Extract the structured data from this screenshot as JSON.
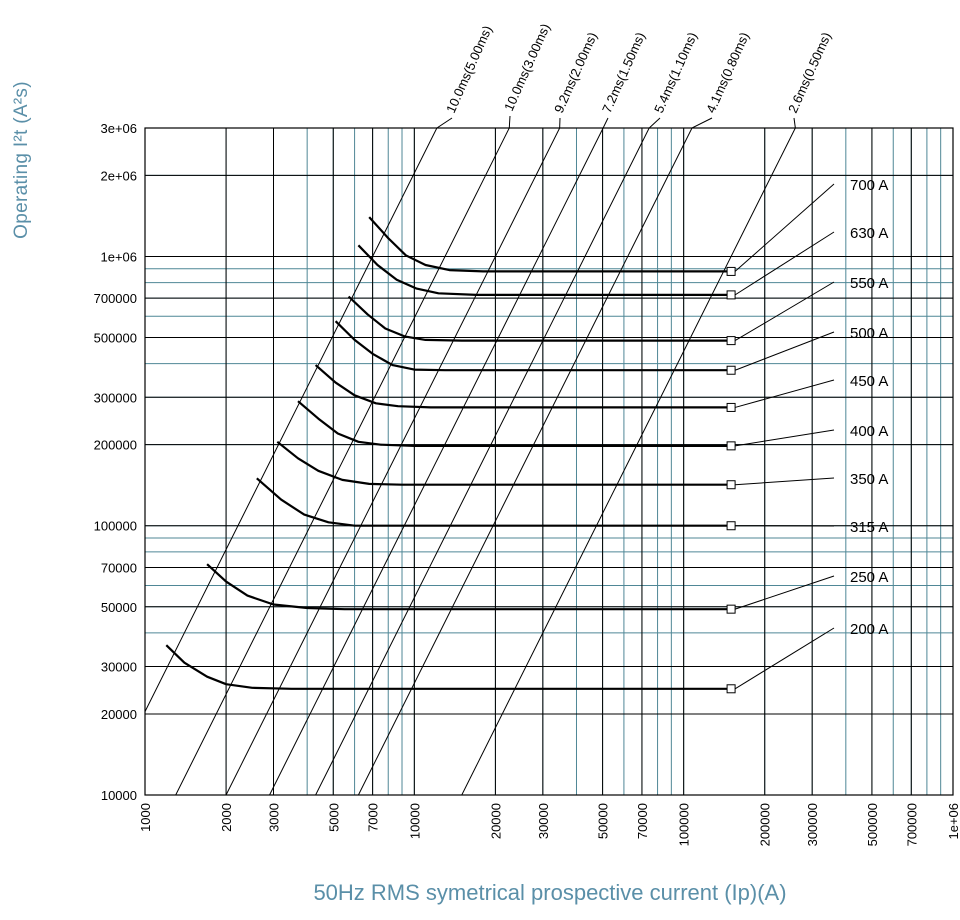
{
  "chart_data": {
    "type": "line",
    "xlabel": "50Hz RMS symetrical prospective current (Ip)(A)",
    "ylabel": "Operating I²t (A²s)",
    "x_scale": "log",
    "y_scale": "log",
    "xlim": [
      1000,
      1000000
    ],
    "ylim": [
      10000,
      3000000
    ],
    "grid": true,
    "x_ticks": [
      "1000",
      "2000",
      "3000",
      "5000",
      "7000",
      "10000",
      "20000",
      "30000",
      "50000",
      "70000",
      "100000",
      "200000",
      "300000",
      "500000",
      "700000",
      "1e+06"
    ],
    "y_ticks": [
      "3e+06",
      "2e+06",
      "1e+06",
      "700000",
      "500000",
      "300000",
      "200000",
      "100000",
      "70000",
      "50000",
      "30000",
      "20000",
      "10000"
    ],
    "diagonal_labels": [
      "10.0ms(5.00ms)",
      "10.0ms(3.00ms)",
      "9.2ms(2.00ms)",
      "7.2ms(1.50ms)",
      "5.4ms(1.10ms)",
      "4.1ms(0.80ms)",
      "2.6ms(0.50ms)"
    ],
    "series": [
      {
        "name": "200 A",
        "x": [
          1200,
          1400,
          1700,
          2000,
          2500,
          3500,
          150000
        ],
        "y": [
          36000,
          31000,
          27500,
          25800,
          25000,
          24800,
          24800
        ]
      },
      {
        "name": "250 A",
        "x": [
          1700,
          2000,
          2400,
          3000,
          4000,
          5500,
          150000
        ],
        "y": [
          72000,
          62000,
          55000,
          51000,
          49500,
          49000,
          49000
        ]
      },
      {
        "name": "315 A",
        "x": [
          2600,
          3200,
          3900,
          4800,
          6000,
          8000,
          150000
        ],
        "y": [
          150000,
          125000,
          110000,
          103000,
          100000,
          100000,
          100000
        ]
      },
      {
        "name": "350 A",
        "x": [
          3100,
          3700,
          4400,
          5400,
          6800,
          9000,
          150000
        ],
        "y": [
          205000,
          178000,
          160000,
          148000,
          143000,
          142000,
          142000
        ]
      },
      {
        "name": "400 A",
        "x": [
          3700,
          4400,
          5200,
          6200,
          7500,
          10000,
          150000
        ],
        "y": [
          290000,
          250000,
          220000,
          205000,
          200000,
          198000,
          198000
        ]
      },
      {
        "name": "450 A",
        "x": [
          4300,
          5100,
          6000,
          7200,
          8700,
          11500,
          150000
        ],
        "y": [
          395000,
          340000,
          305000,
          285000,
          278000,
          275000,
          275000
        ]
      },
      {
        "name": "500 A",
        "x": [
          5100,
          6000,
          7000,
          8300,
          10000,
          13000,
          150000
        ],
        "y": [
          575000,
          490000,
          435000,
          395000,
          380000,
          378000,
          378000
        ]
      },
      {
        "name": "550 A",
        "x": [
          5700,
          6700,
          7800,
          9200,
          11000,
          15000,
          150000
        ],
        "y": [
          710000,
          610000,
          540000,
          505000,
          490000,
          487000,
          487000
        ]
      },
      {
        "name": "630 A",
        "x": [
          6200,
          7300,
          8600,
          10200,
          12300,
          17000,
          150000
        ],
        "y": [
          1100000,
          930000,
          820000,
          760000,
          730000,
          720000,
          720000
        ]
      },
      {
        "name": "700 A",
        "x": [
          6800,
          8000,
          9300,
          11000,
          13500,
          18000,
          150000
        ],
        "y": [
          1400000,
          1170000,
          1010000,
          930000,
          890000,
          880000,
          880000
        ]
      }
    ],
    "series_labels": [
      "700 A",
      "630 A",
      "550 A",
      "500 A",
      "450 A",
      "400 A",
      "350 A",
      "315 A",
      "250 A",
      "200 A"
    ]
  }
}
